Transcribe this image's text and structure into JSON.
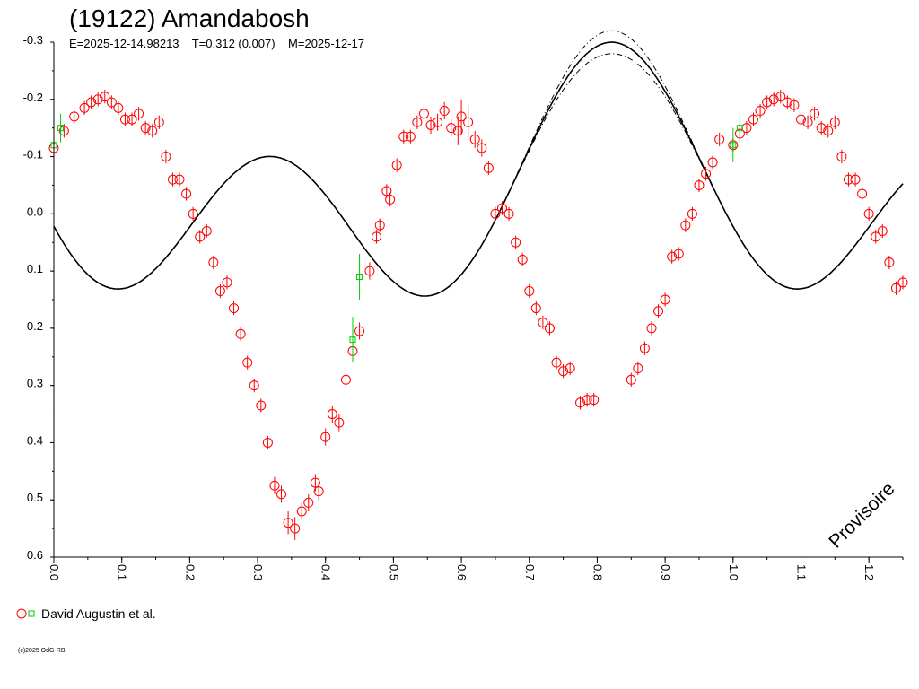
{
  "chart_data": {
    "type": "scatter",
    "title": "(19122) Amandabosh",
    "subtitle": "E=2025-12-14.98213    T=0.312 (0.007)    M=2025-12-17",
    "xlabel": "",
    "ylabel": "",
    "xlim": [
      0.0,
      1.25
    ],
    "ylim": [
      -0.3,
      0.6
    ],
    "y_inverted": true,
    "grid": false,
    "x_ticks": [
      "0.0",
      "0.1",
      "0.2",
      "0.3",
      "0.4",
      "0.5",
      "0.6",
      "0.7",
      "0.8",
      "0.9",
      "1.0",
      "1.1",
      "1.2"
    ],
    "y_ticks": [
      "-0.3",
      "-0.2",
      "-0.1",
      "0.0",
      "0.1",
      "0.2",
      "0.3",
      "0.4",
      "0.5",
      "0.6"
    ],
    "watermark": "Provisoire",
    "legend": {
      "placement": "bottom-left",
      "label": "David Augustin et al."
    },
    "copyright": "(c)2025 OdG-RB",
    "colors": {
      "series1": "#ff0000",
      "series2": "#00cc00",
      "curve": "#000000"
    },
    "series": [
      {
        "marker": "circle",
        "color": "#ff0000",
        "points": [
          [
            0.0,
            -0.115,
            0.012
          ],
          [
            0.015,
            -0.145,
            0.012
          ],
          [
            0.03,
            -0.17,
            0.012
          ],
          [
            0.045,
            -0.185,
            0.012
          ],
          [
            0.055,
            -0.195,
            0.012
          ],
          [
            0.065,
            -0.2,
            0.012
          ],
          [
            0.075,
            -0.205,
            0.012
          ],
          [
            0.085,
            -0.195,
            0.012
          ],
          [
            0.095,
            -0.185,
            0.012
          ],
          [
            0.105,
            -0.165,
            0.012
          ],
          [
            0.115,
            -0.165,
            0.012
          ],
          [
            0.125,
            -0.175,
            0.012
          ],
          [
            0.135,
            -0.15,
            0.012
          ],
          [
            0.145,
            -0.145,
            0.012
          ],
          [
            0.155,
            -0.16,
            0.012
          ],
          [
            0.165,
            -0.1,
            0.012
          ],
          [
            0.175,
            -0.06,
            0.012
          ],
          [
            0.185,
            -0.06,
            0.012
          ],
          [
            0.195,
            -0.035,
            0.012
          ],
          [
            0.205,
            0.0,
            0.012
          ],
          [
            0.215,
            0.04,
            0.012
          ],
          [
            0.225,
            0.03,
            0.012
          ],
          [
            0.235,
            0.085,
            0.012
          ],
          [
            0.245,
            0.135,
            0.012
          ],
          [
            0.255,
            0.12,
            0.012
          ],
          [
            0.265,
            0.165,
            0.012
          ],
          [
            0.275,
            0.21,
            0.012
          ],
          [
            0.285,
            0.26,
            0.012
          ],
          [
            0.295,
            0.3,
            0.012
          ],
          [
            0.305,
            0.335,
            0.012
          ],
          [
            0.315,
            0.4,
            0.012
          ],
          [
            0.325,
            0.475,
            0.015
          ],
          [
            0.335,
            0.49,
            0.015
          ],
          [
            0.345,
            0.54,
            0.02
          ],
          [
            0.355,
            0.55,
            0.02
          ],
          [
            0.365,
            0.52,
            0.015
          ],
          [
            0.375,
            0.505,
            0.015
          ],
          [
            0.385,
            0.47,
            0.015
          ],
          [
            0.39,
            0.485,
            0.015
          ],
          [
            0.4,
            0.39,
            0.015
          ],
          [
            0.41,
            0.35,
            0.015
          ],
          [
            0.42,
            0.365,
            0.015
          ],
          [
            0.43,
            0.29,
            0.015
          ],
          [
            0.44,
            0.24,
            0.015
          ],
          [
            0.45,
            0.205,
            0.015
          ],
          [
            0.465,
            0.1,
            0.015
          ],
          [
            0.475,
            0.04,
            0.012
          ],
          [
            0.48,
            0.02,
            0.012
          ],
          [
            0.49,
            -0.04,
            0.012
          ],
          [
            0.495,
            -0.025,
            0.012
          ],
          [
            0.505,
            -0.085,
            0.012
          ],
          [
            0.515,
            -0.135,
            0.012
          ],
          [
            0.525,
            -0.135,
            0.012
          ],
          [
            0.535,
            -0.16,
            0.012
          ],
          [
            0.545,
            -0.175,
            0.015
          ],
          [
            0.555,
            -0.155,
            0.015
          ],
          [
            0.565,
            -0.16,
            0.015
          ],
          [
            0.575,
            -0.18,
            0.015
          ],
          [
            0.585,
            -0.15,
            0.015
          ],
          [
            0.595,
            -0.145,
            0.025
          ],
          [
            0.6,
            -0.17,
            0.03
          ],
          [
            0.61,
            -0.16,
            0.03
          ],
          [
            0.62,
            -0.13,
            0.015
          ],
          [
            0.63,
            -0.115,
            0.015
          ],
          [
            0.64,
            -0.08,
            0.012
          ],
          [
            0.65,
            0.0,
            0.012
          ],
          [
            0.66,
            -0.01,
            0.012
          ],
          [
            0.67,
            0.0,
            0.012
          ],
          [
            0.68,
            0.05,
            0.012
          ],
          [
            0.69,
            0.08,
            0.012
          ],
          [
            0.7,
            0.135,
            0.012
          ],
          [
            0.71,
            0.165,
            0.012
          ],
          [
            0.72,
            0.19,
            0.012
          ],
          [
            0.73,
            0.2,
            0.012
          ],
          [
            0.74,
            0.26,
            0.012
          ],
          [
            0.75,
            0.275,
            0.012
          ],
          [
            0.76,
            0.27,
            0.012
          ],
          [
            0.775,
            0.33,
            0.012
          ],
          [
            0.785,
            0.325,
            0.012
          ],
          [
            0.795,
            0.325,
            0.012
          ],
          [
            0.85,
            0.29,
            0.012
          ],
          [
            0.86,
            0.27,
            0.012
          ],
          [
            0.87,
            0.235,
            0.012
          ],
          [
            0.88,
            0.2,
            0.012
          ],
          [
            0.89,
            0.17,
            0.012
          ],
          [
            0.9,
            0.15,
            0.012
          ],
          [
            0.91,
            0.075,
            0.012
          ],
          [
            0.92,
            0.07,
            0.012
          ],
          [
            0.93,
            0.02,
            0.012
          ],
          [
            0.94,
            0.0,
            0.012
          ],
          [
            0.95,
            -0.05,
            0.012
          ],
          [
            0.96,
            -0.07,
            0.012
          ],
          [
            0.97,
            -0.09,
            0.012
          ],
          [
            0.98,
            -0.13,
            0.012
          ],
          [
            1.0,
            -0.12,
            0.012
          ],
          [
            1.01,
            -0.14,
            0.012
          ],
          [
            1.02,
            -0.15,
            0.012
          ],
          [
            1.03,
            -0.165,
            0.012
          ],
          [
            1.04,
            -0.18,
            0.012
          ],
          [
            1.05,
            -0.195,
            0.012
          ],
          [
            1.06,
            -0.2,
            0.012
          ],
          [
            1.07,
            -0.205,
            0.012
          ],
          [
            1.08,
            -0.195,
            0.012
          ],
          [
            1.09,
            -0.19,
            0.012
          ],
          [
            1.1,
            -0.165,
            0.012
          ],
          [
            1.11,
            -0.16,
            0.012
          ],
          [
            1.12,
            -0.175,
            0.012
          ],
          [
            1.13,
            -0.15,
            0.012
          ],
          [
            1.14,
            -0.145,
            0.012
          ],
          [
            1.15,
            -0.16,
            0.012
          ],
          [
            1.16,
            -0.1,
            0.012
          ],
          [
            1.17,
            -0.06,
            0.012
          ],
          [
            1.18,
            -0.06,
            0.012
          ],
          [
            1.19,
            -0.035,
            0.012
          ],
          [
            1.2,
            0.0,
            0.012
          ],
          [
            1.21,
            0.04,
            0.012
          ],
          [
            1.22,
            0.03,
            0.012
          ],
          [
            1.23,
            0.085,
            0.012
          ],
          [
            1.24,
            0.13,
            0.012
          ],
          [
            1.25,
            0.12,
            0.012
          ]
        ]
      },
      {
        "marker": "square",
        "color": "#00cc00",
        "points": [
          [
            0.0,
            -0.12,
            0.03
          ],
          [
            0.01,
            -0.15,
            0.025
          ],
          [
            0.44,
            0.22,
            0.04
          ],
          [
            0.45,
            0.11,
            0.04
          ],
          [
            1.0,
            -0.12,
            0.03
          ],
          [
            1.01,
            -0.15,
            0.025
          ]
        ]
      }
    ]
  }
}
